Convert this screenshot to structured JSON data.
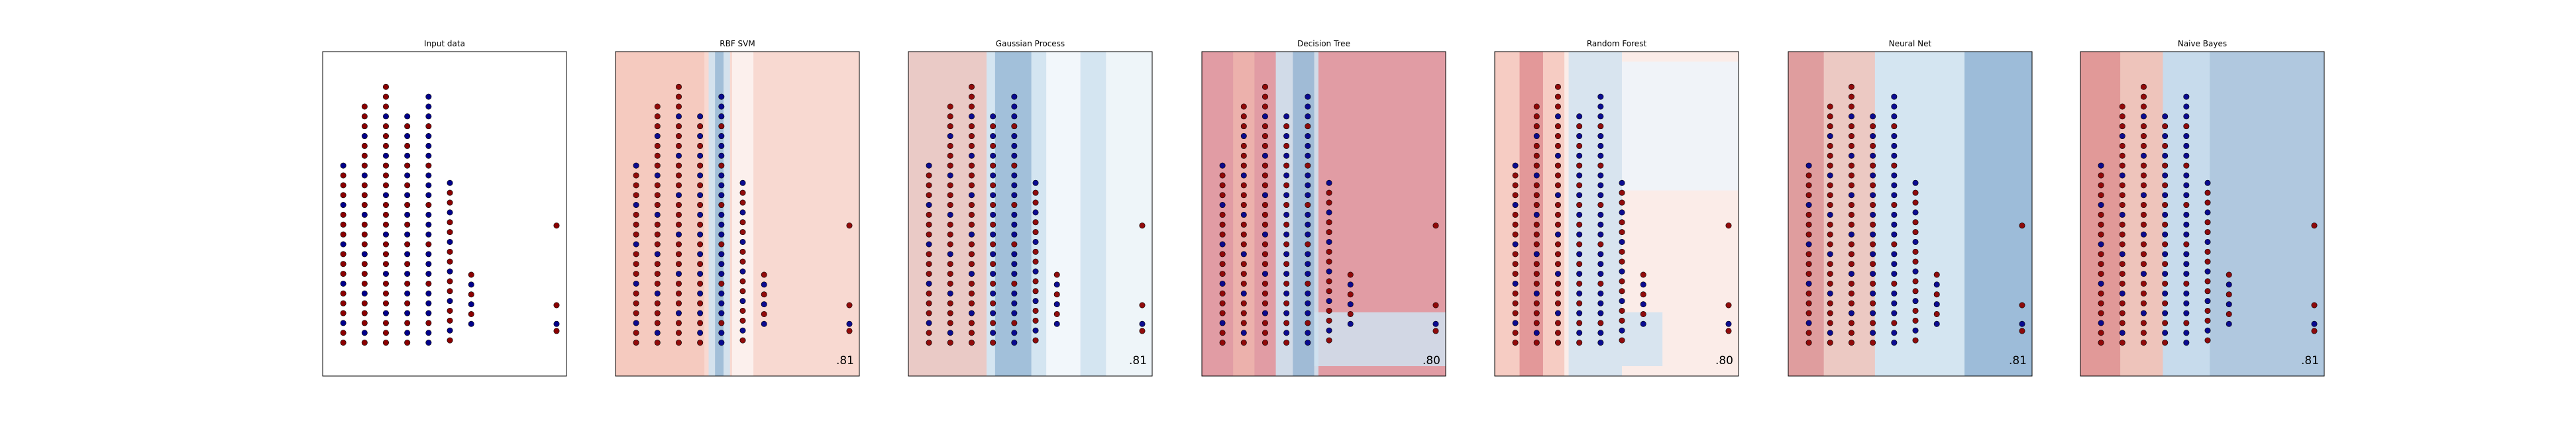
{
  "figure": {
    "description_of_colormap": "RdBu",
    "colors": {
      "red_class": "#8b0000",
      "blue_class": "#00008b",
      "region_red": "#c94b5a",
      "region_light_red": "#f4bfb3",
      "region_blue": "#6f9bc4",
      "region_light_blue": "#cfe2f0",
      "frame": "#000000"
    }
  },
  "chart_data": [
    {
      "type": "scatter",
      "title": "Input data",
      "score": "",
      "xlim": [
        0,
        10.5
      ],
      "ylim": [
        -0.5,
        12.5
      ],
      "x_columns": [
        0.5,
        1.5,
        2.5,
        3.5,
        4.5,
        5.5,
        6.5,
        10.5
      ],
      "columns": [
        {
          "x": 0.5,
          "top": 8.1,
          "bottom": 0.5,
          "mix": [
            "red",
            "red",
            "blue",
            "red"
          ]
        },
        {
          "x": 1.5,
          "top": 10.6,
          "bottom": 0.5,
          "mix": [
            "red",
            "blue",
            "red",
            "red"
          ]
        },
        {
          "x": 2.5,
          "top": 11.6,
          "bottom": 0.5,
          "mix": [
            "red",
            "red",
            "red",
            "blue"
          ]
        },
        {
          "x": 3.5,
          "top": 10.3,
          "bottom": 0.5,
          "mix": [
            "red",
            "blue",
            "red",
            "blue"
          ]
        },
        {
          "x": 4.5,
          "top": 11.3,
          "bottom": 0.5,
          "mix": [
            "blue",
            "blue",
            "red",
            "blue"
          ]
        },
        {
          "x": 5.5,
          "top": 7.5,
          "bottom": 0.6,
          "mix": [
            "red",
            "blue",
            "red"
          ]
        },
        {
          "x": 6.5,
          "top": 3.5,
          "bottom": 1.3,
          "mix": [
            "blue",
            "red"
          ]
        },
        {
          "x": 10.5,
          "top": 5.5,
          "bottom": 1.0,
          "mix": [
            "red",
            "red",
            "blue"
          ]
        }
      ]
    },
    {
      "type": "scatter",
      "title": "RBF SVM",
      "score": ".81",
      "decision": "svm"
    },
    {
      "type": "scatter",
      "title": "Gaussian Process",
      "score": ".81",
      "decision": "gp"
    },
    {
      "type": "scatter",
      "title": "Decision Tree",
      "score": ".80",
      "decision": "tree"
    },
    {
      "type": "scatter",
      "title": "Random Forest",
      "score": ".80",
      "decision": "forest"
    },
    {
      "type": "scatter",
      "title": "Neural Net",
      "score": ".81",
      "decision": "nn"
    },
    {
      "type": "scatter",
      "title": "Naive Bayes",
      "score": ".81",
      "decision": "nb"
    }
  ]
}
